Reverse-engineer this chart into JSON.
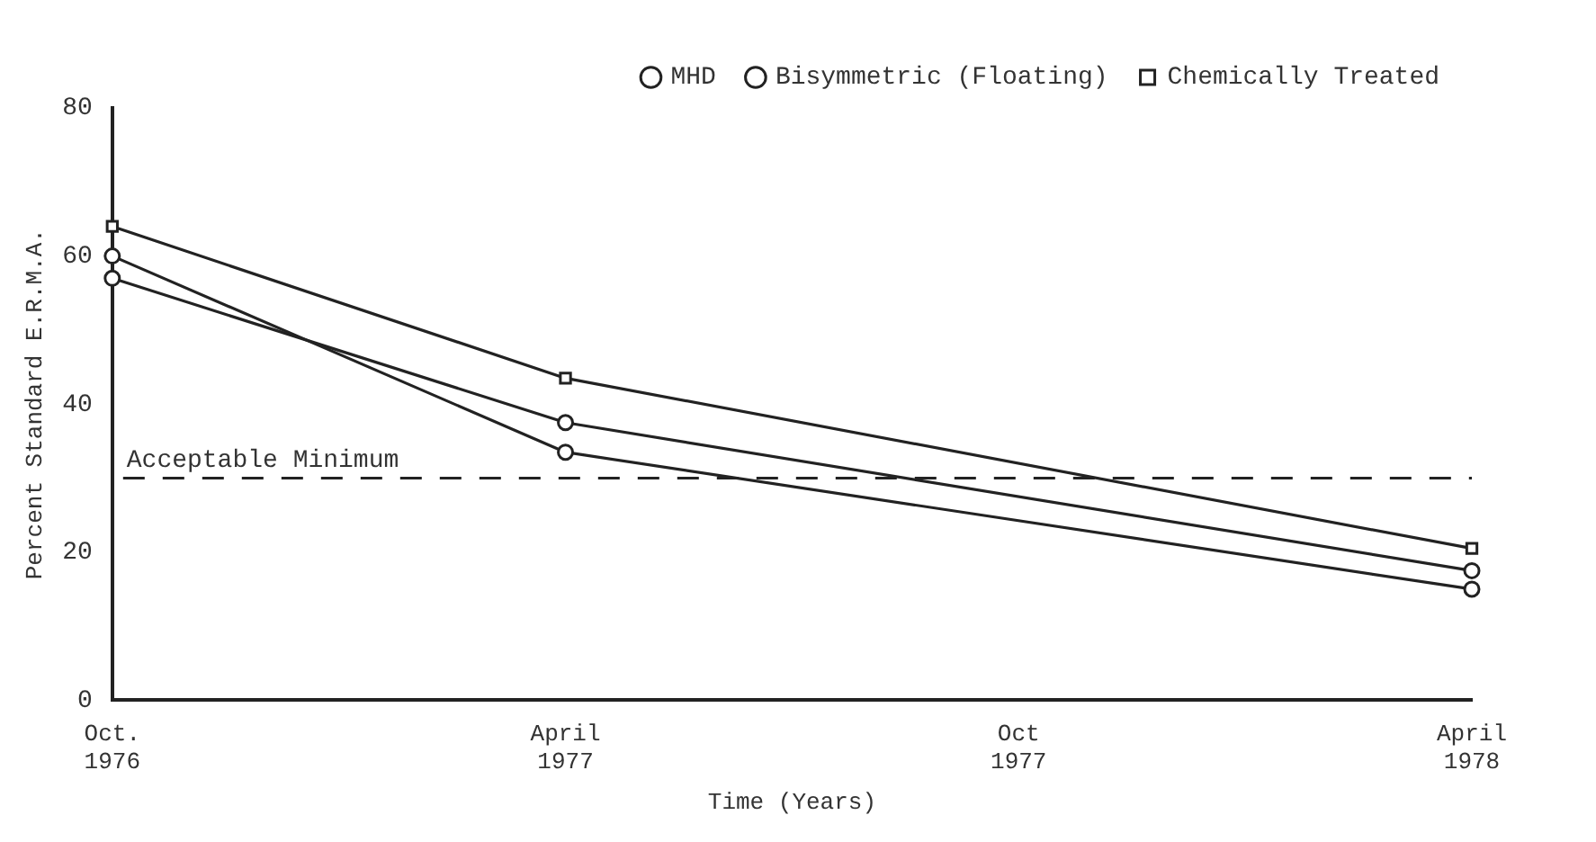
{
  "chart_data": {
    "type": "line",
    "xlabel": "Time (Years)",
    "ylabel": "Percent Standard E.R.M.A.",
    "categories": [
      "Oct. 1976",
      "April 1977",
      "Oct 1977",
      "April 1978"
    ],
    "series": [
      {
        "name": "MHD",
        "color": "#222222",
        "marker": "circle",
        "values": [
          60,
          33.5,
          null,
          15
        ]
      },
      {
        "name": "Bisymmetric (Floating)",
        "color": "#222222",
        "marker": "circle",
        "values": [
          57,
          37.5,
          null,
          17.5
        ]
      },
      {
        "name": "Chemically Treated",
        "color": "#222222",
        "marker": "square",
        "values": [
          64,
          43.5,
          null,
          20.5
        ]
      }
    ],
    "ylim": [
      0,
      80
    ],
    "yticks": [
      0,
      20,
      40,
      60,
      80
    ],
    "grid": false,
    "legend": "top right",
    "line_style": "solid",
    "ref_lines": [
      {
        "axis": "y",
        "value": 30,
        "label": "Acceptable Minimum",
        "line_style": "dashed",
        "color": "#222222"
      }
    ]
  }
}
